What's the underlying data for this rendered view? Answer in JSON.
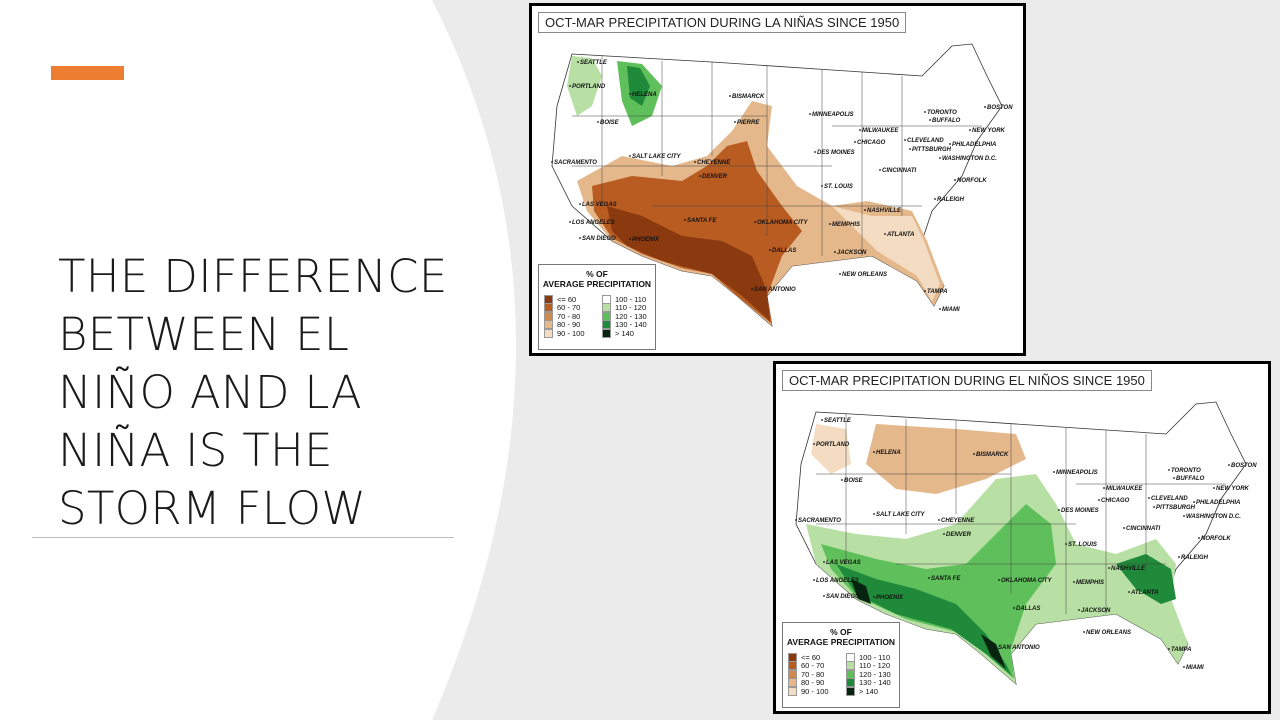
{
  "slide": {
    "title_lines": [
      "THE DIFFERENCE",
      "BETWEEN EL",
      "NIÑO AND LA",
      "NIÑA IS THE",
      "STORM FLOW"
    ],
    "accent_color": "#ed7d31"
  },
  "maps": [
    {
      "title": "OCT-MAR PRECIPITATION DURING LA NIÑAS SINCE 1950",
      "legend": {
        "heading_line1": "% OF",
        "heading_line2": "AVERAGE PRECIPITATION",
        "left": [
          {
            "label": "<= 60",
            "color": "#8b3a0f"
          },
          {
            "label": "60 - 70",
            "color": "#b85c22"
          },
          {
            "label": "70 - 80",
            "color": "#d08a4e"
          },
          {
            "label": "80 - 90",
            "color": "#e5b88c"
          },
          {
            "label": "90 - 100",
            "color": "#f4dcc2"
          }
        ],
        "right": [
          {
            "label": "100 - 110",
            "color": "#ffffff"
          },
          {
            "label": "110 - 120",
            "color": "#b8e0a4"
          },
          {
            "label": "120 - 130",
            "color": "#5fbf5a"
          },
          {
            "label": "130 - 140",
            "color": "#1e8a3a"
          },
          {
            "label": "> 140",
            "color": "#06240f"
          }
        ]
      },
      "cities": [
        "SEATTLE",
        "PORTLAND",
        "HELENA",
        "BOISE",
        "BISMARCK",
        "PIERRE",
        "MINNEAPOLIS",
        "MILWAUKEE",
        "CHICAGO",
        "DES MOINES",
        "TORONTO",
        "BUFFALO",
        "BOSTON",
        "NEW YORK",
        "CLEVELAND",
        "PITTSBURGH",
        "PHILADELPHIA",
        "WASHINGTON D.C.",
        "CINCINNATI",
        "SACRAMENTO",
        "SALT LAKE CITY",
        "CHEYENNE",
        "DENVER",
        "ST. LOUIS",
        "NORFOLK",
        "RALEIGH",
        "NASHVILLE",
        "LAS VEGAS",
        "LOS ANGELES",
        "SAN DIEGO",
        "PHOENIX",
        "SANTA FE",
        "OKLAHOMA CITY",
        "MEMPHIS",
        "ATLANTA",
        "DALLAS",
        "JACKSON",
        "NEW ORLEANS",
        "SAN ANTONIO",
        "TAMPA",
        "MIAMI"
      ]
    },
    {
      "title": "OCT-MAR PRECIPITATION DURING EL NIÑOS SINCE 1950",
      "legend": {
        "heading_line1": "% OF",
        "heading_line2": "AVERAGE PRECIPITATION",
        "left": [
          {
            "label": "<= 60",
            "color": "#8b3a0f"
          },
          {
            "label": "60 - 70",
            "color": "#b85c22"
          },
          {
            "label": "70 - 80",
            "color": "#d08a4e"
          },
          {
            "label": "80 - 90",
            "color": "#e5b88c"
          },
          {
            "label": "90 - 100",
            "color": "#f4dcc2"
          }
        ],
        "right": [
          {
            "label": "100 - 110",
            "color": "#ffffff"
          },
          {
            "label": "110 - 120",
            "color": "#b8e0a4"
          },
          {
            "label": "120 - 130",
            "color": "#5fbf5a"
          },
          {
            "label": "130 - 140",
            "color": "#1e8a3a"
          },
          {
            "label": "> 140",
            "color": "#06240f"
          }
        ]
      },
      "cities": [
        "SEATTLE",
        "PORTLAND",
        "HELENA",
        "BOISE",
        "BISMARCK",
        "MINNEAPOLIS",
        "MILWAUKEE",
        "CHICAGO",
        "DES MOINES",
        "TORONTO",
        "BUFFALO",
        "BOSTON",
        "NEW YORK",
        "CLEVELAND",
        "PITTSBURGH",
        "PHILADELPHIA",
        "WASHINGTON D.C.",
        "CINCINNATI",
        "SACRAMENTO",
        "SALT LAKE CITY",
        "CHEYENNE",
        "DENVER",
        "ST. LOUIS",
        "NORFOLK",
        "RALEIGH",
        "NASHVILLE",
        "LAS VEGAS",
        "LOS ANGELES",
        "SAN DIEGO",
        "PHOENIX",
        "SANTA FE",
        "OKLAHOMA CITY",
        "MEMPHIS",
        "ATLANTA",
        "DALLAS",
        "JACKSON",
        "NEW ORLEANS",
        "SAN ANTONIO",
        "TAMPA",
        "MIAMI"
      ]
    }
  ]
}
